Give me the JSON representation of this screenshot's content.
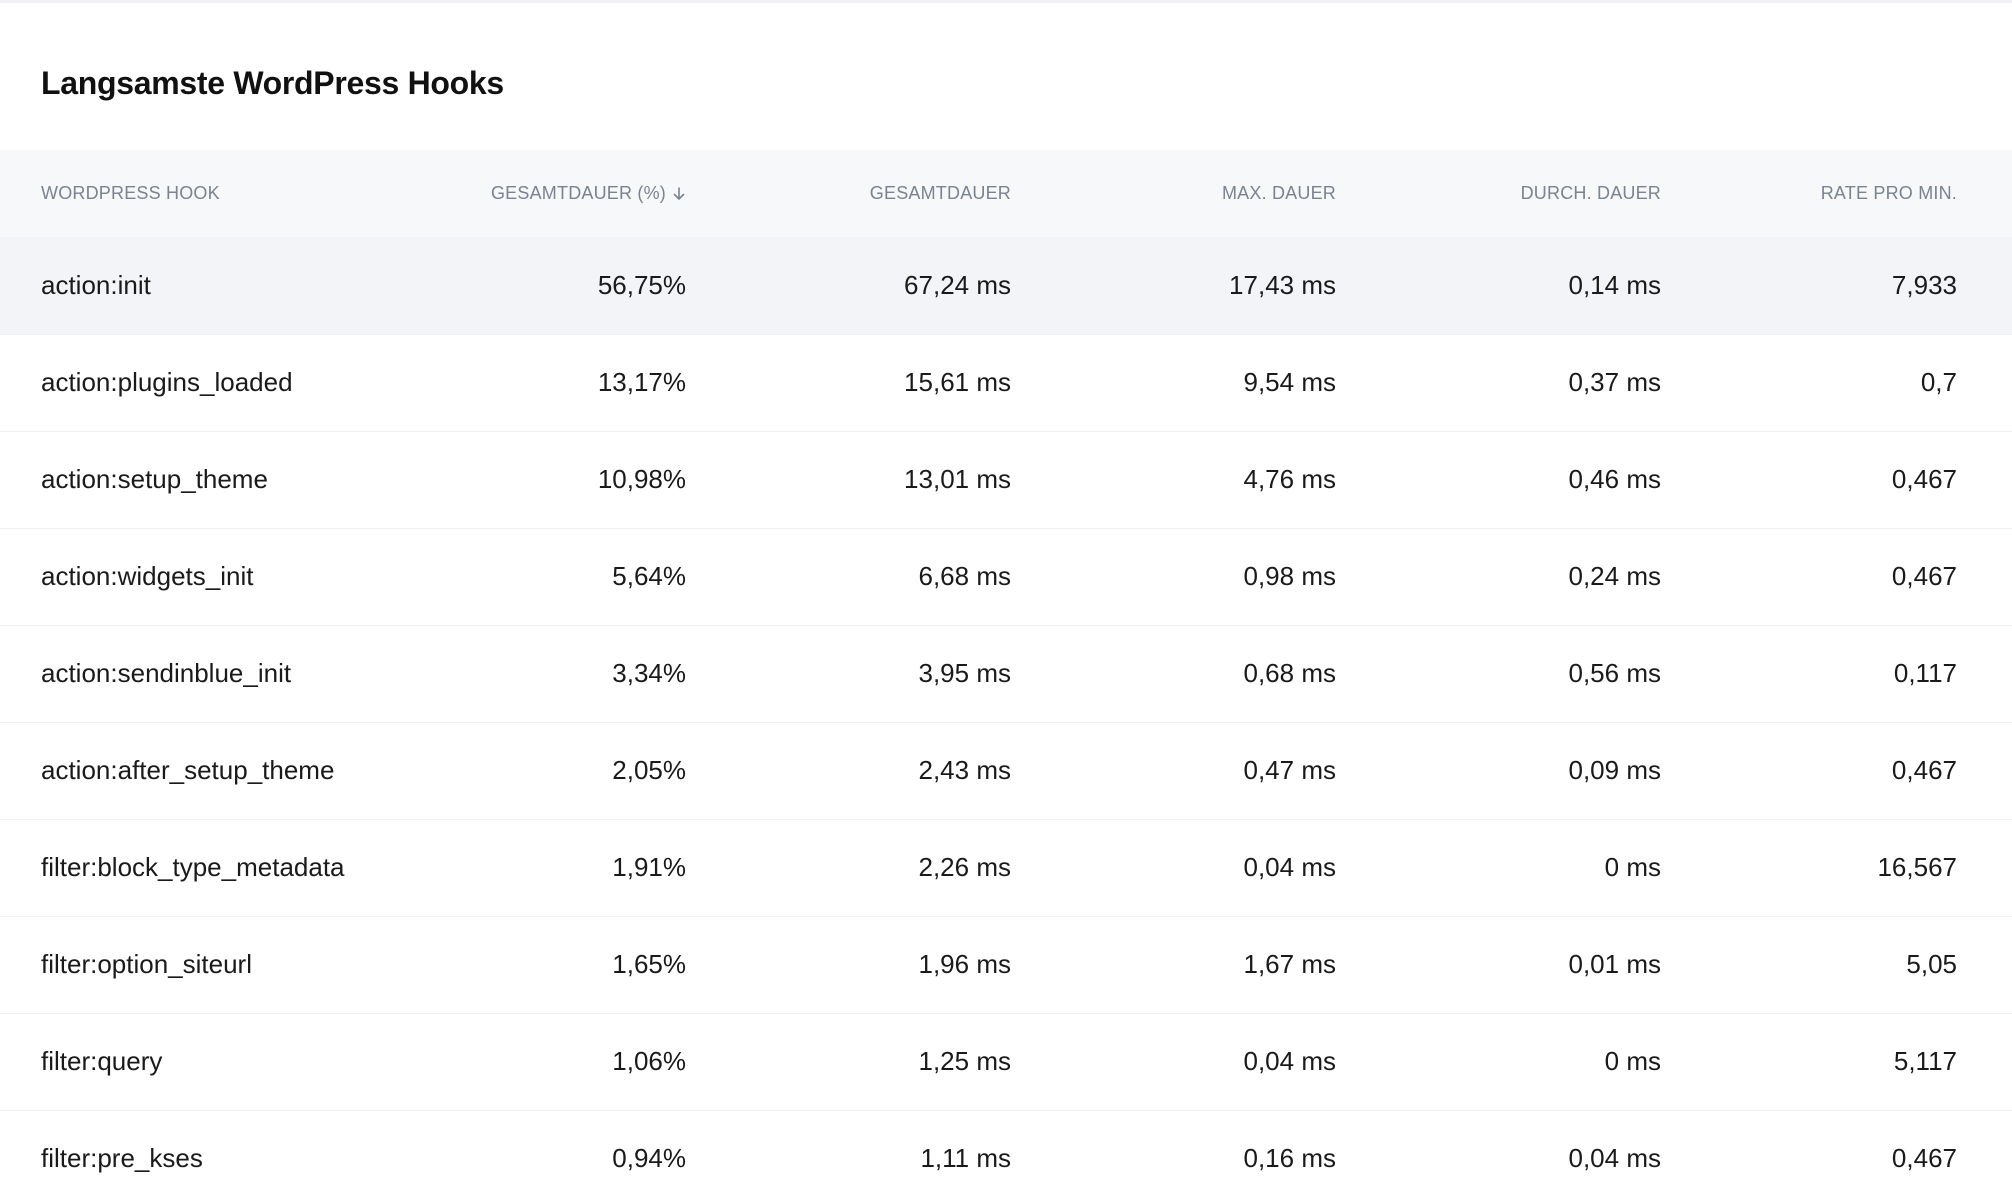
{
  "panel": {
    "title": "Langsamste WordPress Hooks"
  },
  "table": {
    "columns": [
      {
        "label": "WORDPRESS HOOK",
        "sortable": true
      },
      {
        "label": "GESAMTDAUER (%)",
        "sortable": true,
        "sorted": "desc",
        "sort_icon": "arrow-down-icon"
      },
      {
        "label": "GESAMTDAUER",
        "sortable": true
      },
      {
        "label": "MAX. DAUER",
        "sortable": true
      },
      {
        "label": "DURCH. DAUER",
        "sortable": true
      },
      {
        "label": "RATE PRO MIN.",
        "sortable": true
      }
    ],
    "rows": [
      {
        "hook": "action:init",
        "pct": "56,75%",
        "total": "67,24 ms",
        "max": "17,43 ms",
        "avg": "0,14 ms",
        "rate": "7,933"
      },
      {
        "hook": "action:plugins_loaded",
        "pct": "13,17%",
        "total": "15,61 ms",
        "max": "9,54 ms",
        "avg": "0,37 ms",
        "rate": "0,7"
      },
      {
        "hook": "action:setup_theme",
        "pct": "10,98%",
        "total": "13,01 ms",
        "max": "4,76 ms",
        "avg": "0,46 ms",
        "rate": "0,467"
      },
      {
        "hook": "action:widgets_init",
        "pct": "5,64%",
        "total": "6,68 ms",
        "max": "0,98 ms",
        "avg": "0,24 ms",
        "rate": "0,467"
      },
      {
        "hook": "action:sendinblue_init",
        "pct": "3,34%",
        "total": "3,95 ms",
        "max": "0,68 ms",
        "avg": "0,56 ms",
        "rate": "0,117"
      },
      {
        "hook": "action:after_setup_theme",
        "pct": "2,05%",
        "total": "2,43 ms",
        "max": "0,47 ms",
        "avg": "0,09 ms",
        "rate": "0,467"
      },
      {
        "hook": "filter:block_type_metadata",
        "pct": "1,91%",
        "total": "2,26 ms",
        "max": "0,04 ms",
        "avg": "0 ms",
        "rate": "16,567"
      },
      {
        "hook": "filter:option_siteurl",
        "pct": "1,65%",
        "total": "1,96 ms",
        "max": "1,67 ms",
        "avg": "0,01 ms",
        "rate": "5,05"
      },
      {
        "hook": "filter:query",
        "pct": "1,06%",
        "total": "1,25 ms",
        "max": "0,04 ms",
        "avg": "0 ms",
        "rate": "5,117"
      },
      {
        "hook": "filter:pre_kses",
        "pct": "0,94%",
        "total": "1,11 ms",
        "max": "0,16 ms",
        "avg": "0,04 ms",
        "rate": "0,467"
      }
    ],
    "highlighted_row": 0
  },
  "colors": {
    "header_bg": "#f7f8fa",
    "highlight_row_bg": "#f3f4f7",
    "header_text": "#7b8290",
    "body_text": "#1a1a1a",
    "row_divider": "#eef0f3"
  }
}
